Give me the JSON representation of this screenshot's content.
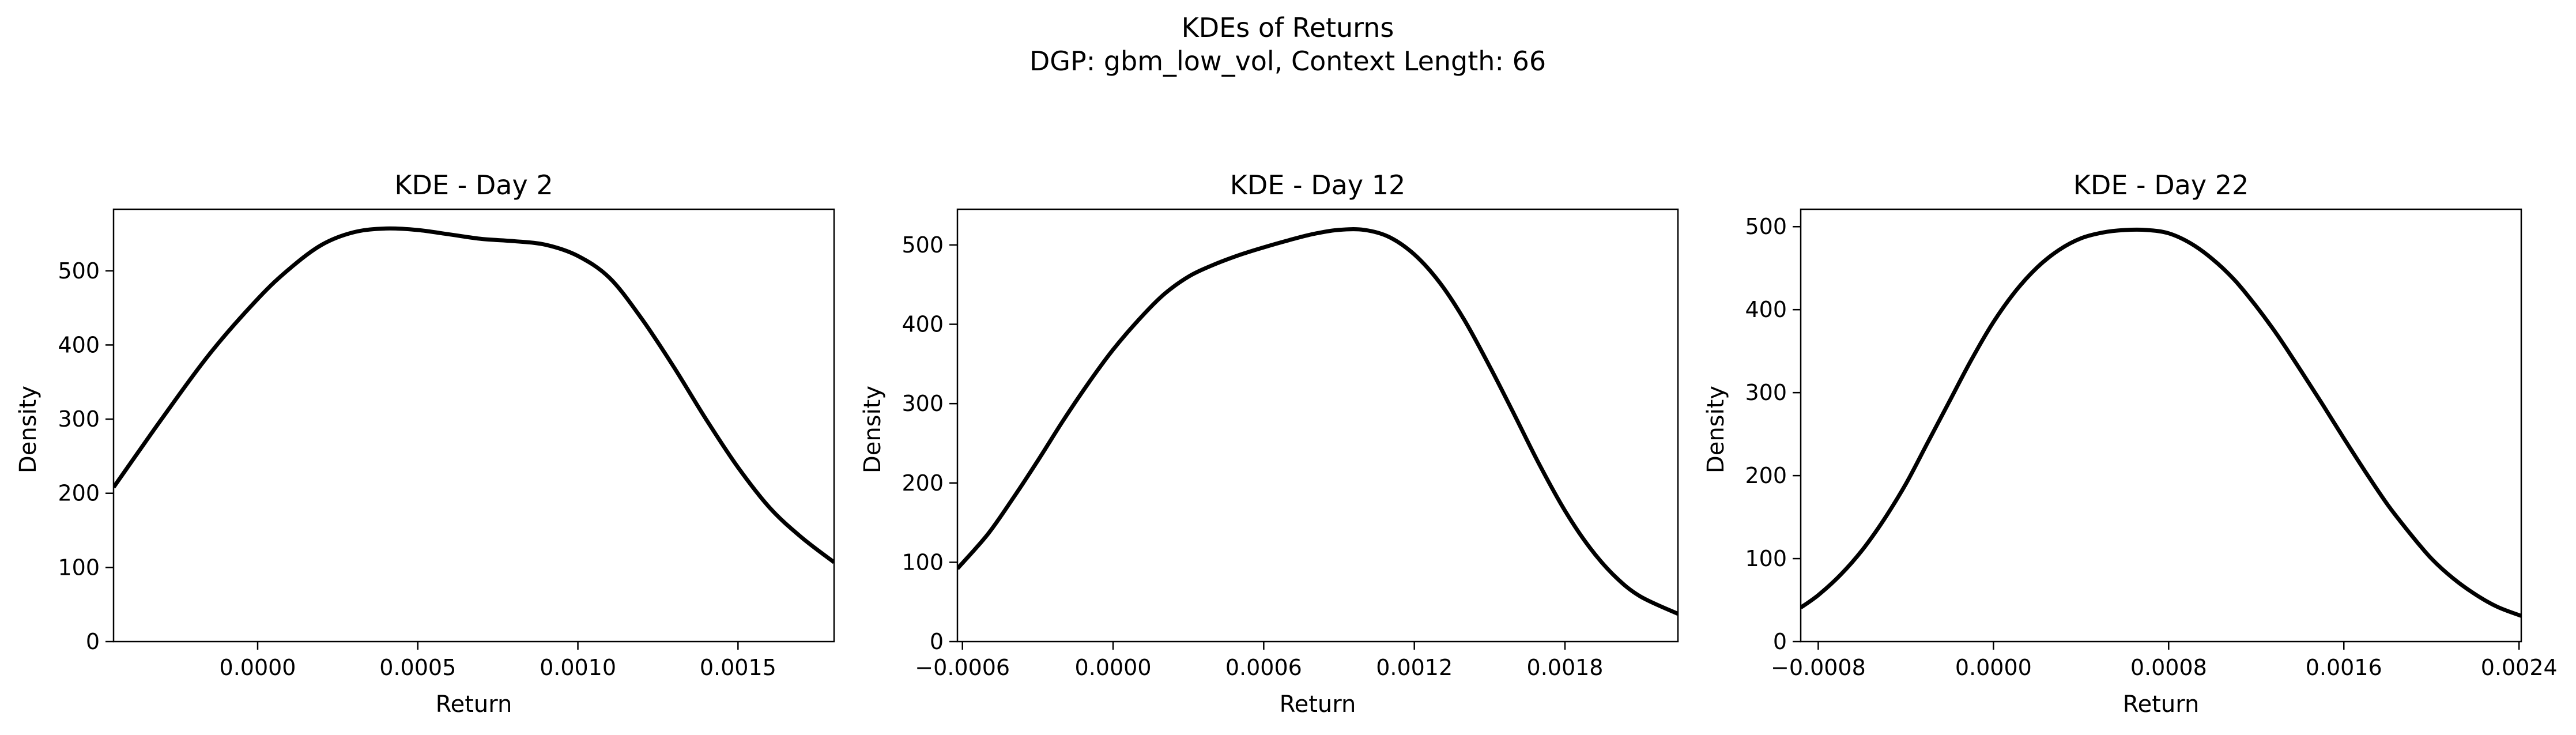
{
  "figure": {
    "title_line1": "KDEs of Returns",
    "title_line2": "DGP: gbm_low_vol, Context Length: 66"
  },
  "line_color": "#000000",
  "chart_data": [
    {
      "type": "line",
      "title": "KDE - Day 2",
      "xlabel": "Return",
      "ylabel": "Density",
      "xlim": [
        -0.00045,
        0.0018
      ],
      "ylim": [
        0,
        583
      ],
      "xticks": [
        0.0,
        0.0005,
        0.001,
        0.0015
      ],
      "xtick_labels": [
        "0.0000",
        "0.0005",
        "0.0010",
        "0.0015"
      ],
      "yticks": [
        0,
        100,
        200,
        300,
        400,
        500
      ],
      "ytick_labels": [
        "0",
        "100",
        "200",
        "300",
        "400",
        "500"
      ],
      "grid": false,
      "series": [
        {
          "x": [
            -0.00045,
            -0.0003,
            -0.00015,
            0.0,
            0.0001,
            0.0002,
            0.0003,
            0.0004,
            0.0005,
            0.0006,
            0.0007,
            0.0008,
            0.0009,
            0.001,
            0.0011,
            0.0012,
            0.0013,
            0.0014,
            0.0015,
            0.0016,
            0.0017,
            0.0018
          ],
          "y": [
            208,
            300,
            388,
            462,
            503,
            535,
            552,
            557,
            555,
            549,
            543,
            540,
            535,
            520,
            490,
            435,
            370,
            300,
            235,
            180,
            140,
            107
          ]
        }
      ]
    },
    {
      "type": "line",
      "title": "KDE - Day 12",
      "xlabel": "Return",
      "ylabel": "Density",
      "xlim": [
        -0.00062,
        0.00225
      ],
      "ylim": [
        0,
        545
      ],
      "xticks": [
        -0.0006,
        0.0,
        0.0006,
        0.0012,
        0.0018
      ],
      "xtick_labels": [
        "−0.0006",
        "0.0000",
        "0.0006",
        "0.0012",
        "0.0018"
      ],
      "yticks": [
        0,
        100,
        200,
        300,
        400,
        500
      ],
      "ytick_labels": [
        "0",
        "100",
        "200",
        "300",
        "400",
        "500"
      ],
      "grid": false,
      "series": [
        {
          "x": [
            -0.00062,
            -0.0005,
            -0.0004,
            -0.0003,
            -0.0002,
            -0.0001,
            0.0,
            0.0001,
            0.0002,
            0.0003,
            0.0004,
            0.0005,
            0.0006,
            0.0007,
            0.0008,
            0.0009,
            0.001,
            0.0011,
            0.0012,
            0.0013,
            0.0014,
            0.0015,
            0.0016,
            0.0017,
            0.0018,
            0.0019,
            0.002,
            0.0021,
            0.00225
          ],
          "y": [
            92,
            135,
            180,
            228,
            278,
            325,
            368,
            405,
            437,
            460,
            475,
            487,
            497,
            506,
            514,
            519,
            519,
            510,
            488,
            453,
            405,
            347,
            285,
            222,
            165,
            118,
            82,
            57,
            35
          ]
        }
      ]
    },
    {
      "type": "line",
      "title": "KDE - Day 22",
      "xlabel": "Return",
      "ylabel": "Density",
      "xlim": [
        -0.00088,
        0.00241
      ],
      "ylim": [
        0,
        521
      ],
      "xticks": [
        -0.0008,
        0.0,
        0.0008,
        0.0016,
        0.0024
      ],
      "xtick_labels": [
        "−0.0008",
        "0.0000",
        "0.0008",
        "0.0016",
        "0.0024"
      ],
      "yticks": [
        0,
        100,
        200,
        300,
        400,
        500
      ],
      "ytick_labels": [
        "0",
        "100",
        "200",
        "300",
        "400",
        "500"
      ],
      "grid": false,
      "series": [
        {
          "x": [
            -0.00088,
            -0.0008,
            -0.0007,
            -0.0006,
            -0.0005,
            -0.0004,
            -0.0003,
            -0.0002,
            -0.0001,
            0.0,
            0.0001,
            0.0002,
            0.0003,
            0.0004,
            0.0005,
            0.0006,
            0.0007,
            0.0008,
            0.0009,
            0.001,
            0.0011,
            0.0012,
            0.0013,
            0.0014,
            0.0015,
            0.0016,
            0.0017,
            0.0018,
            0.0019,
            0.002,
            0.0021,
            0.0022,
            0.0023,
            0.00241
          ],
          "y": [
            41,
            56,
            80,
            110,
            147,
            190,
            240,
            290,
            340,
            385,
            422,
            451,
            472,
            486,
            493,
            496,
            496,
            492,
            480,
            461,
            436,
            404,
            368,
            328,
            287,
            245,
            204,
            165,
            131,
            100,
            76,
            57,
            42,
            31
          ]
        }
      ]
    }
  ]
}
